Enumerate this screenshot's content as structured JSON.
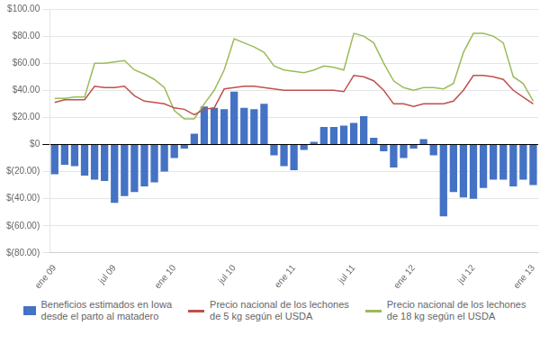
{
  "chart_data": {
    "type": "bar",
    "categories": [
      "ene 09",
      null,
      null,
      null,
      null,
      null,
      "jul 09",
      null,
      null,
      null,
      null,
      null,
      "ene 10",
      null,
      null,
      null,
      null,
      null,
      "jul 10",
      null,
      null,
      null,
      null,
      null,
      "ene 11",
      null,
      null,
      null,
      null,
      null,
      "jul 11",
      null,
      null,
      null,
      null,
      null,
      "ene 12",
      null,
      null,
      null,
      null,
      null,
      "jul 12",
      null,
      null,
      null,
      null,
      null,
      "ene 13"
    ],
    "series": [
      {
        "name": "Beneficios estimados en Iowa\ndesde el parto al matadero",
        "type": "bar",
        "color": "#4472C4",
        "values": [
          -22,
          -15,
          -16,
          -23,
          -26,
          -27,
          -43,
          -38,
          -35,
          -31,
          -28,
          -20,
          -10,
          -3,
          8,
          28,
          27,
          26,
          39,
          27,
          26,
          30,
          -8,
          -16,
          -19,
          -4,
          2,
          13,
          13,
          14,
          16,
          21,
          5,
          -5,
          -17,
          -10,
          -3,
          4,
          -8,
          -53,
          -35,
          -39,
          -40,
          -32,
          -26,
          -26,
          -31,
          -26,
          -30
        ]
      },
      {
        "name": "Precio nacional de los lechones\nde 5 kg según el USDA",
        "type": "line",
        "color": "#C0504D",
        "values": [
          31,
          33,
          33,
          33,
          43,
          42,
          42,
          43,
          36,
          32,
          31,
          30,
          27,
          26,
          22,
          26,
          27,
          41,
          42,
          43,
          43,
          42,
          41,
          40,
          40,
          40,
          40,
          40,
          40,
          39,
          51,
          50,
          47,
          40,
          30,
          30,
          28,
          30,
          30,
          30,
          32,
          40,
          51,
          51,
          50,
          48,
          40,
          35,
          30
        ]
      },
      {
        "name": "Precio nacional de los lechones\nde 18 kg según el USDA",
        "type": "line",
        "color": "#9BBB59",
        "values": [
          34,
          34,
          35,
          35,
          60,
          60,
          61,
          62,
          55,
          52,
          48,
          42,
          25,
          19,
          19,
          30,
          40,
          55,
          78,
          75,
          72,
          68,
          58,
          55,
          54,
          53,
          55,
          58,
          57,
          55,
          82,
          80,
          75,
          60,
          47,
          42,
          40,
          42,
          42,
          41,
          45,
          68,
          82,
          82,
          80,
          75,
          50,
          45,
          32
        ]
      }
    ],
    "ylim": [
      -80,
      100
    ],
    "yticks": [
      {
        "value": -80,
        "label": "$(80.00)"
      },
      {
        "value": -60,
        "label": "$(60.00)"
      },
      {
        "value": -40,
        "label": "$(40.00)"
      },
      {
        "value": -20,
        "label": "$(20.00)"
      },
      {
        "value": 0,
        "label": "$0"
      },
      {
        "value": 20,
        "label": "$20.00"
      },
      {
        "value": 40,
        "label": "$40.00"
      },
      {
        "value": 60,
        "label": "$60.00"
      },
      {
        "value": 80,
        "label": "$80.00"
      },
      {
        "value": 100,
        "label": "$100.00"
      }
    ],
    "grid": true,
    "legend": "bottom"
  }
}
